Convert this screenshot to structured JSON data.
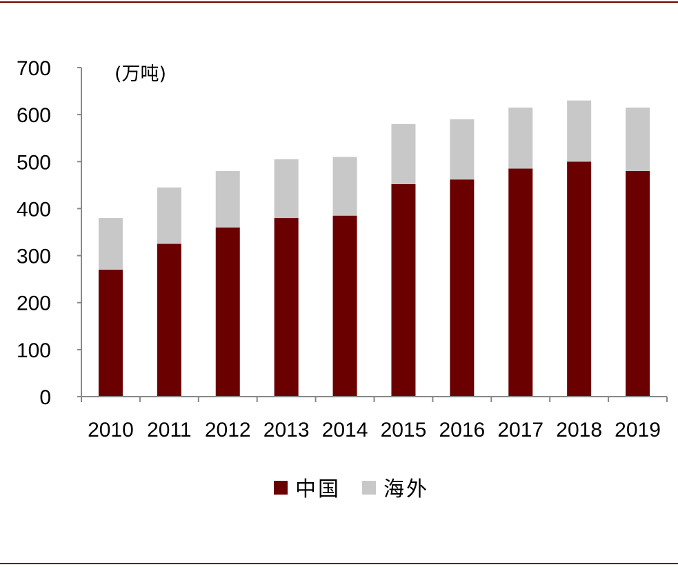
{
  "chart_data": {
    "type": "bar",
    "stacked": true,
    "unit_label": "(万吨)",
    "categories": [
      "2010",
      "2011",
      "2012",
      "2013",
      "2014",
      "2015",
      "2016",
      "2017",
      "2018",
      "2019"
    ],
    "series": [
      {
        "name": "中国",
        "color": "#6b0000",
        "values": [
          270,
          325,
          360,
          380,
          385,
          452,
          462,
          485,
          500,
          480
        ]
      },
      {
        "name": "海外",
        "color": "#c8c8c8",
        "values": [
          110,
          120,
          120,
          125,
          125,
          128,
          128,
          130,
          130,
          135
        ]
      }
    ],
    "yticks": [
      0,
      100,
      200,
      300,
      400,
      500,
      600,
      700
    ],
    "ylim": [
      0,
      700
    ],
    "grid": false,
    "legend_position": "bottom-center",
    "frame_color": "#6b0000"
  }
}
